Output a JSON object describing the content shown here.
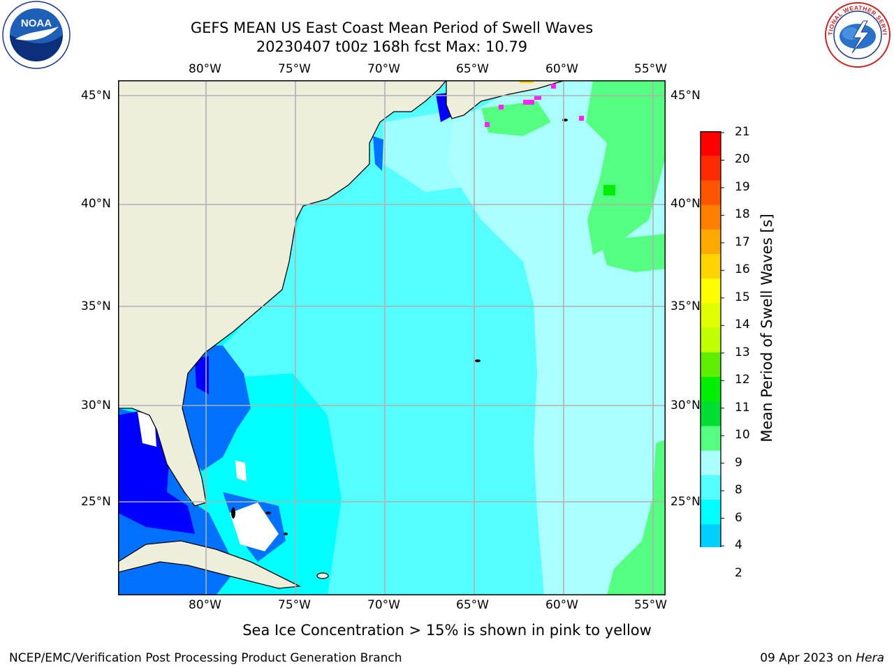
{
  "header": {
    "title_line1": "GEFS MEAN US East Coast Mean Period of Swell Waves",
    "title_line2": "20230407 t00z 168h fcst   Max: 10.79"
  },
  "logos": {
    "noaa_text": "NOAA",
    "nws_text": "NATIONAL WEATHER SERVICE"
  },
  "map": {
    "lon_labels": [
      "80°W",
      "75°W",
      "70°W",
      "65°W",
      "60°W",
      "55°W"
    ],
    "lat_labels": [
      "45°N",
      "40°N",
      "35°N",
      "30°N",
      "25°N"
    ],
    "land_color": "#eeeedd",
    "grid_color": "#b0b0b0"
  },
  "colorbar": {
    "title": "Mean Period of Swell Waves [s]",
    "ticks": [
      "21",
      "20",
      "19",
      "18",
      "17",
      "16",
      "15",
      "14",
      "13",
      "12",
      "11",
      "10",
      "9",
      "8",
      "6",
      "4",
      "2"
    ],
    "colors": [
      "#ff0000",
      "#ff2a00",
      "#ff5500",
      "#ff7f00",
      "#ffaa00",
      "#ffd400",
      "#ffff00",
      "#e0ff00",
      "#c0ff00",
      "#60ee00",
      "#00ee00",
      "#00dd33",
      "#55ff80",
      "#aaffff",
      "#55ffff",
      "#00ffff",
      "#00d0ff",
      "#0070ff",
      "#0000ff"
    ]
  },
  "note": "Sea Ice Concentration > 15% is shown in pink to yellow",
  "footer": {
    "left": "NCEP/EMC/Verification Post Processing Product Generation Branch",
    "right_date": "09 Apr 2023 on ",
    "right_host": "Hera"
  }
}
